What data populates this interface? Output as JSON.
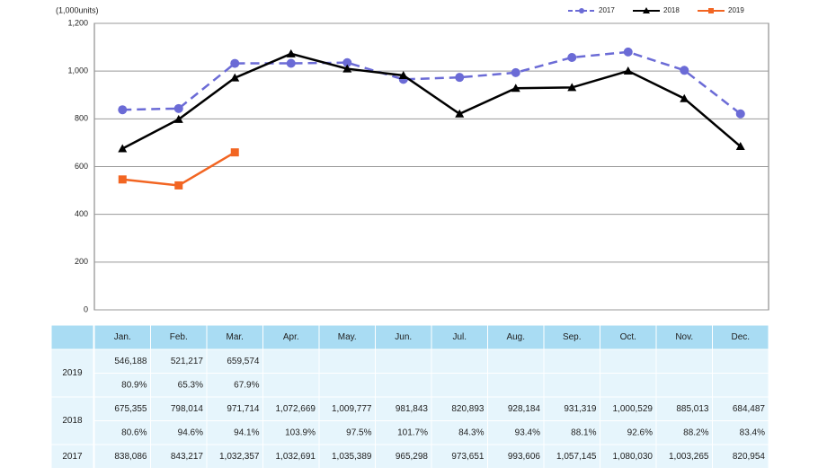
{
  "chart_data": {
    "type": "line",
    "y_axis_label": "(1,000units)",
    "categories": [
      "Jan.",
      "Feb.",
      "Mar.",
      "Apr.",
      "May.",
      "Jun.",
      "Jul.",
      "Aug.",
      "Sep.",
      "Oct.",
      "Nov.",
      "Dec."
    ],
    "ylim": [
      0,
      1200
    ],
    "yticks": [
      0,
      200,
      400,
      600,
      800,
      {
        "value": 1000,
        "label": "1,000"
      },
      {
        "value": 1200,
        "label": "1,200"
      }
    ],
    "grid": true,
    "legend": "top-right",
    "series": [
      {
        "name": "2017",
        "color": "#6b6bd6",
        "style": "dashed",
        "marker": "circle",
        "values": [
          838.086,
          843.217,
          1032.357,
          1032.691,
          1035.389,
          965.298,
          973.651,
          993.606,
          1057.145,
          1080.03,
          1003.265,
          820.954
        ],
        "value_labels": [
          "838,086",
          "843,217",
          "1,032,357",
          "1,032,691",
          "1,035,389",
          "965,298",
          "973,651",
          "993,606",
          "1,057,145",
          "1,080,030",
          "1,003,265",
          "820,954"
        ]
      },
      {
        "name": "2018",
        "color": "#000000",
        "style": "solid",
        "marker": "triangle",
        "values": [
          675.355,
          798.014,
          971.714,
          1072.669,
          1009.777,
          981.843,
          820.893,
          928.184,
          931.319,
          1000.529,
          885.013,
          684.487
        ],
        "value_labels": [
          "675,355",
          "798,014",
          "971,714",
          "1,072,669",
          "1,009,777",
          "981,843",
          "820,893",
          "928,184",
          "931,319",
          "1,000,529",
          "885,013",
          "684,487"
        ],
        "yoy": [
          "80.6%",
          "94.6%",
          "94.1%",
          "103.9%",
          "97.5%",
          "101.7%",
          "84.3%",
          "93.4%",
          "88.1%",
          "92.6%",
          "88.2%",
          "83.4%"
        ]
      },
      {
        "name": "2019",
        "color": "#f26522",
        "style": "solid",
        "marker": "square",
        "values": [
          546.188,
          521.217,
          659.574,
          null,
          null,
          null,
          null,
          null,
          null,
          null,
          null,
          null
        ],
        "value_labels": [
          "546,188",
          "521,217",
          "659,574",
          null,
          null,
          null,
          null,
          null,
          null,
          null,
          null,
          null
        ],
        "yoy": [
          "80.9%",
          "65.3%",
          "67.9%",
          null,
          null,
          null,
          null,
          null,
          null,
          null,
          null,
          null
        ]
      }
    ]
  }
}
